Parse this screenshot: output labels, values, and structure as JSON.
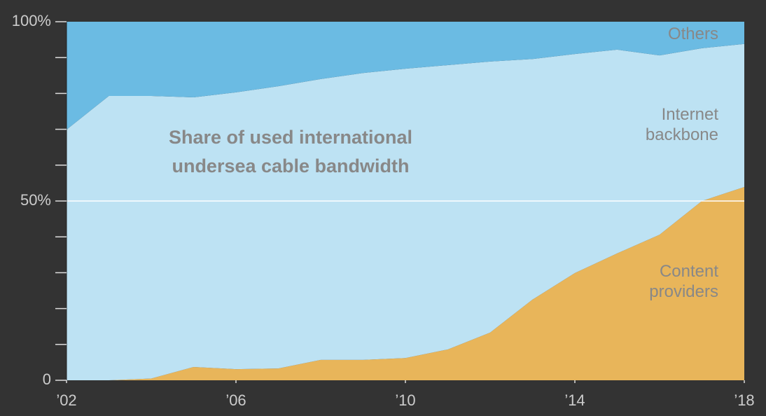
{
  "chart_data": {
    "type": "stacked_area",
    "title": "Share of used international undersea cable bandwidth",
    "x": [
      2002,
      2003,
      2004,
      2005,
      2006,
      2007,
      2008,
      2009,
      2010,
      2011,
      2012,
      2013,
      2014,
      2015,
      2016,
      2017,
      2018
    ],
    "xlim": [
      2002,
      2018
    ],
    "xticks": [
      {
        "value": 2002,
        "label": "’02"
      },
      {
        "value": 2006,
        "label": "’06"
      },
      {
        "value": 2010,
        "label": "’10"
      },
      {
        "value": 2014,
        "label": "’14"
      },
      {
        "value": 2018,
        "label": "’18"
      }
    ],
    "ylim": [
      0,
      100
    ],
    "yticks": [
      0,
      {
        "value": 50,
        "label": "50%"
      },
      {
        "value": 100,
        "label": "100%"
      }
    ],
    "minor_yticks": [
      10,
      20,
      30,
      40,
      60,
      70,
      80,
      90
    ],
    "grid_values": [
      50
    ],
    "series": [
      {
        "name": "Content providers",
        "color": "#e8b55a",
        "values": [
          0,
          0,
          0.5,
          3.7,
          3.1,
          3.3,
          5.7,
          5.7,
          6.2,
          8.6,
          13.3,
          22.5,
          29.9,
          35.4,
          40.6,
          50.0,
          53.9
        ]
      },
      {
        "name": "Internet backbone",
        "color": "#bde2f3",
        "values": [
          69.9,
          79.3,
          78.8,
          75.2,
          77.2,
          78.7,
          78.3,
          80.0,
          80.7,
          79.3,
          75.6,
          67.1,
          61.1,
          56.8,
          50.0,
          42.6,
          39.9
        ]
      },
      {
        "name": "Others",
        "color": "#6bbbe3",
        "values": [
          30.1,
          20.7,
          20.7,
          21.1,
          19.7,
          18.0,
          16.0,
          14.3,
          13.1,
          12.1,
          11.1,
          10.4,
          9.0,
          7.8,
          9.4,
          7.4,
          6.2
        ]
      }
    ]
  }
}
